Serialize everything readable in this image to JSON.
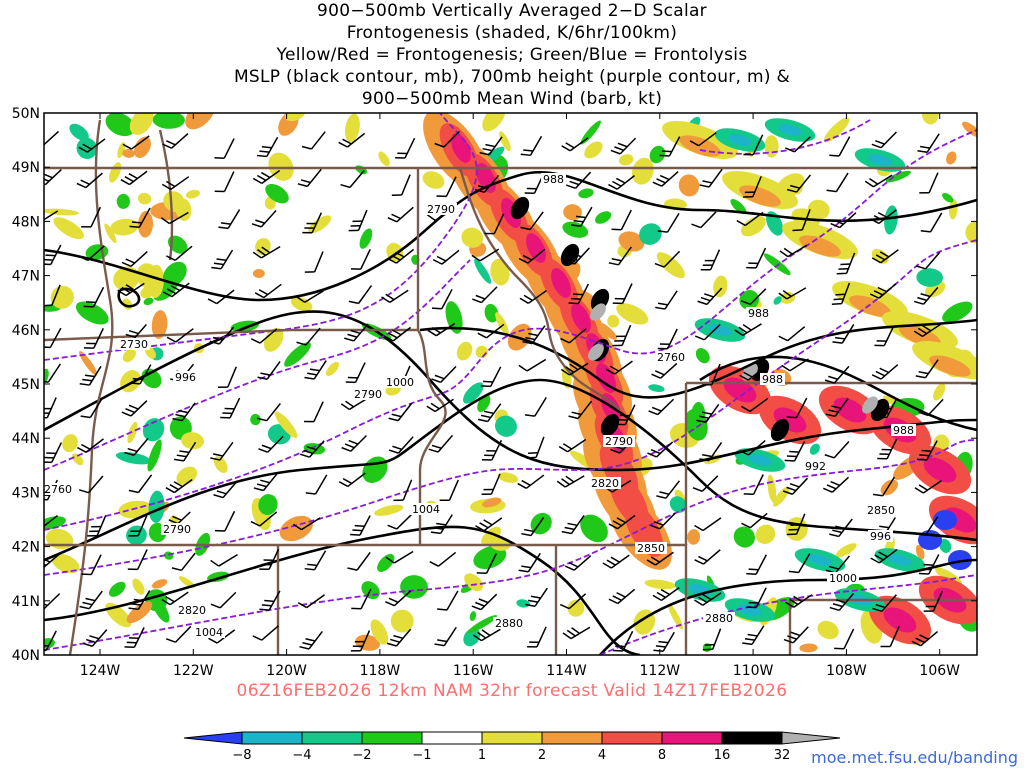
{
  "title_lines": [
    "900−500mb Vertically Averaged 2−D Scalar",
    "Frontogenesis (shaded, K/6hr/100km)",
    "Yellow/Red = Frontogenesis;  Green/Blue = Frontolysis",
    "MSLP (black contour, mb), 700mb height (purple contour, m) &",
    "900−500mb Mean Wind (barb, kt)"
  ],
  "lat_labels": [
    "50N",
    "49N",
    "48N",
    "47N",
    "46N",
    "45N",
    "44N",
    "43N",
    "42N",
    "41N",
    "40N"
  ],
  "lon_labels": [
    "124W",
    "122W",
    "120W",
    "118W",
    "116W",
    "114W",
    "112W",
    "110W",
    "108W",
    "106W"
  ],
  "valid_line": "06Z16FEB2026 12km NAM 32hr forecast Valid 14Z17FEB2026",
  "credit": "moe.met.fsu.edu/banding",
  "colorbar": {
    "labels": [
      "−8",
      "−4",
      "−2",
      "−1",
      "1",
      "2",
      "4",
      "8",
      "16",
      "32"
    ],
    "colors": [
      "#2a3ff0",
      "#1bb4c8",
      "#12c98a",
      "#20c81a",
      "#ffffff",
      "#e4de3a",
      "#f19a3c",
      "#f24e46",
      "#e8147a",
      "#000000",
      "#b0b0b0"
    ]
  },
  "mslp_labels": [
    "988",
    "996",
    "1000",
    "1004",
    "992",
    "996",
    "1000",
    "1004",
    "988",
    "988",
    "988"
  ],
  "height_labels": [
    "2730",
    "2760",
    "2790",
    "2790",
    "2790",
    "2820",
    "2850",
    "2880",
    "2880",
    "2850",
    "2820",
    "2790",
    "2760"
  ]
}
